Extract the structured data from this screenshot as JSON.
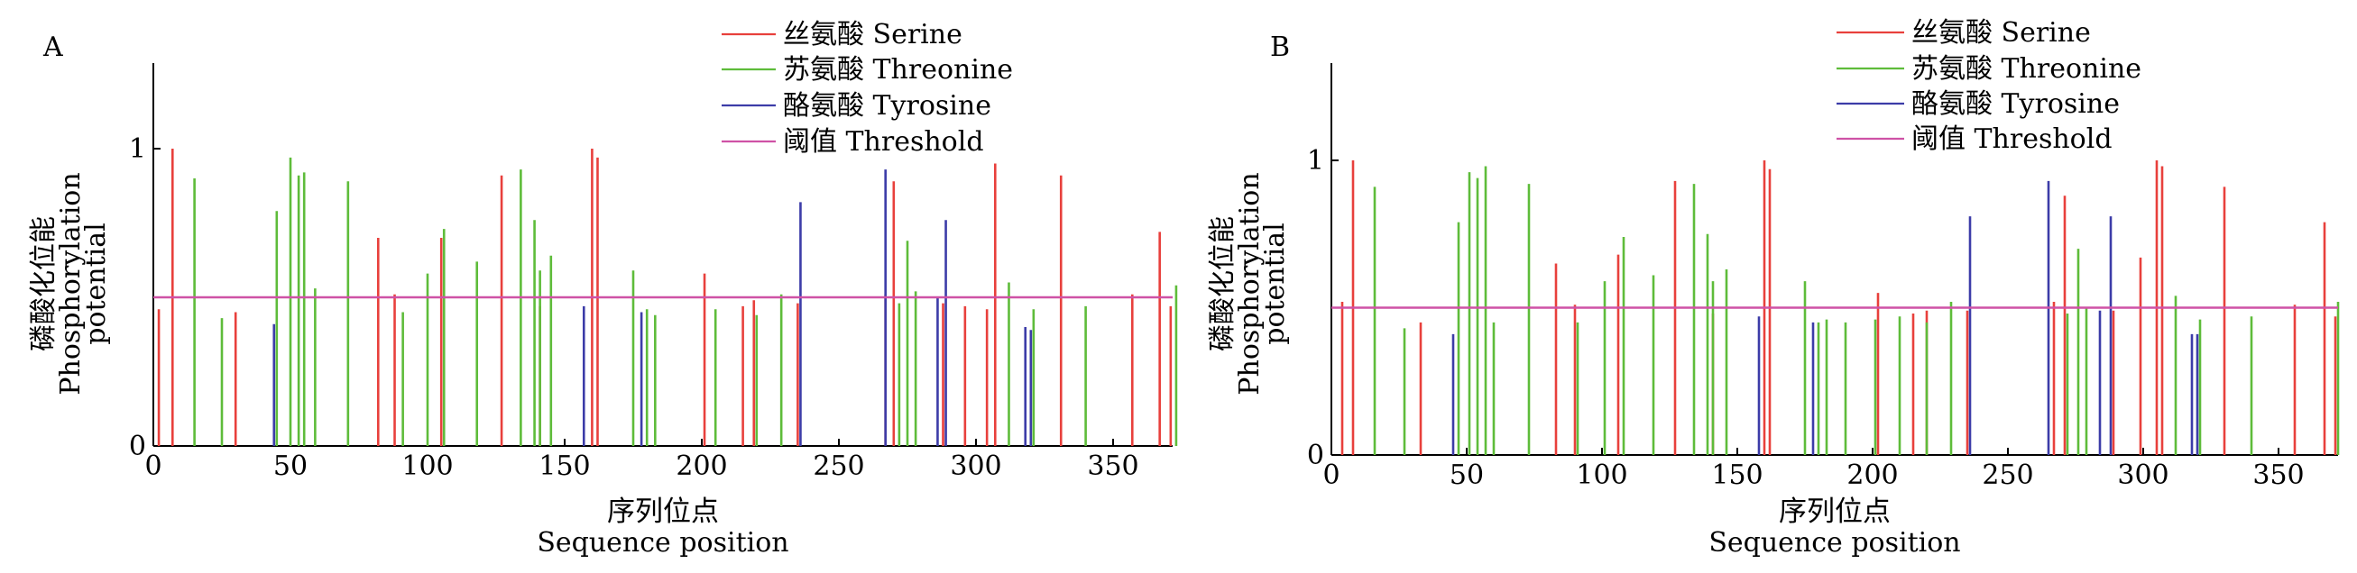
{
  "chart_data": [
    {
      "panel_label": "A",
      "type": "bar",
      "xlabel_cn": "序列位点",
      "xlabel_en": "Sequence position",
      "ylabel_cn": "磷酸化位能",
      "ylabel_en": "Phosphorylation",
      "ylabel_en2": "potential",
      "xlim": [
        0,
        372
      ],
      "ylim": [
        0,
        1.3
      ],
      "xticks": [
        0,
        50,
        100,
        150,
        200,
        250,
        300,
        350
      ],
      "ytick_labels": [
        {
          "value": 0,
          "label": "0"
        },
        {
          "value": 1,
          "label": "1"
        }
      ],
      "threshold": 0.5,
      "legend": [
        {
          "key": "serine",
          "label": "丝氨酸 Serine",
          "color": "#e8403c"
        },
        {
          "key": "threonine",
          "label": "苏氨酸 Threonine",
          "color": "#5ebc3a"
        },
        {
          "key": "tyrosine",
          "label": "酪氨酸 Tyrosine",
          "color": "#3c3ca8"
        },
        {
          "key": "threshold",
          "label": "阈值 Threshold",
          "color": "#cf52a6"
        }
      ],
      "series": [
        {
          "key": "serine",
          "name": "丝氨酸 Serine",
          "color": "#e8403c",
          "x": [
            2,
            7,
            30,
            82,
            88,
            105,
            127,
            141,
            160,
            162,
            201,
            215,
            219,
            235,
            267,
            270,
            288,
            296,
            304,
            307,
            331,
            357,
            367,
            371
          ],
          "y": [
            0.46,
            1.0,
            0.45,
            0.7,
            0.51,
            0.7,
            0.91,
            0.47,
            1.0,
            0.97,
            0.58,
            0.47,
            0.49,
            0.48,
            0.51,
            0.89,
            0.48,
            0.47,
            0.46,
            0.95,
            0.91,
            0.51,
            0.72,
            0.47
          ]
        },
        {
          "key": "threonine",
          "name": "苏氨酸 Threonine",
          "color": "#5ebc3a",
          "x": [
            15,
            25,
            45,
            50,
            53,
            55,
            59,
            71,
            91,
            100,
            106,
            118,
            134,
            139,
            141,
            145,
            175,
            180,
            183,
            205,
            220,
            229,
            272,
            275,
            278,
            312,
            321,
            340,
            373
          ],
          "y": [
            0.9,
            0.43,
            0.79,
            0.97,
            0.91,
            0.92,
            0.53,
            0.89,
            0.45,
            0.58,
            0.73,
            0.62,
            0.93,
            0.76,
            0.59,
            0.64,
            0.59,
            0.46,
            0.44,
            0.46,
            0.44,
            0.51,
            0.48,
            0.69,
            0.52,
            0.55,
            0.46,
            0.47,
            0.54
          ]
        },
        {
          "key": "tyrosine",
          "name": "酪氨酸 Tyrosine",
          "color": "#3c3ca8",
          "x": [
            44,
            157,
            178,
            236,
            267,
            286,
            289,
            318,
            320
          ],
          "y": [
            0.41,
            0.47,
            0.45,
            0.82,
            0.93,
            0.5,
            0.76,
            0.4,
            0.39
          ]
        }
      ]
    },
    {
      "panel_label": "B",
      "type": "bar",
      "xlabel_cn": "序列位点",
      "xlabel_en": "Sequence position",
      "ylabel_cn": "磷酸化位能",
      "ylabel_en": "Phosphorylation",
      "ylabel_en2": "potential",
      "xlim": [
        0,
        372
      ],
      "ylim": [
        0,
        1.3
      ],
      "xticks": [
        0,
        50,
        100,
        150,
        200,
        250,
        300,
        350
      ],
      "ytick_labels": [
        {
          "value": 0,
          "label": "0"
        },
        {
          "value": 1,
          "label": "1"
        }
      ],
      "threshold": 0.5,
      "legend": [
        {
          "key": "serine",
          "label": "丝氨酸 Serine",
          "color": "#e8403c"
        },
        {
          "key": "threonine",
          "label": "苏氨酸 Threonine",
          "color": "#5ebc3a"
        },
        {
          "key": "tyrosine",
          "label": "酪氨酸 Tyrosine",
          "color": "#3c3ca8"
        },
        {
          "key": "threshold",
          "label": "阈值 Threshold",
          "color": "#cf52a6"
        }
      ],
      "series": [
        {
          "key": "serine",
          "name": "丝氨酸 Serine",
          "color": "#e8403c",
          "x": [
            4,
            8,
            33,
            83,
            90,
            106,
            127,
            141,
            160,
            162,
            202,
            215,
            220,
            235,
            267,
            271,
            289,
            299,
            305,
            307,
            330,
            356,
            367,
            371
          ],
          "y": [
            0.52,
            1.0,
            0.45,
            0.65,
            0.51,
            0.68,
            0.93,
            0.48,
            1.0,
            0.97,
            0.55,
            0.48,
            0.49,
            0.49,
            0.52,
            0.88,
            0.49,
            0.67,
            1.0,
            0.98,
            0.91,
            0.51,
            0.79,
            0.47
          ]
        },
        {
          "key": "threonine",
          "name": "苏氨酸 Threonine",
          "color": "#5ebc3a",
          "x": [
            16,
            27,
            47,
            51,
            54,
            57,
            60,
            73,
            91,
            101,
            108,
            119,
            134,
            139,
            141,
            146,
            175,
            180,
            183,
            190,
            201,
            210,
            220,
            229,
            272,
            276,
            279,
            312,
            321,
            340,
            372
          ],
          "y": [
            0.91,
            0.43,
            0.79,
            0.96,
            0.94,
            0.98,
            0.45,
            0.92,
            0.45,
            0.59,
            0.74,
            0.61,
            0.92,
            0.75,
            0.59,
            0.63,
            0.59,
            0.45,
            0.46,
            0.45,
            0.46,
            0.47,
            0.45,
            0.52,
            0.48,
            0.7,
            0.5,
            0.54,
            0.46,
            0.47,
            0.52
          ]
        },
        {
          "key": "tyrosine",
          "name": "酪氨酸 Tyrosine",
          "color": "#3c3ca8",
          "x": [
            45,
            158,
            178,
            236,
            265,
            284,
            288,
            318,
            320
          ],
          "y": [
            0.41,
            0.47,
            0.45,
            0.81,
            0.93,
            0.49,
            0.81,
            0.41,
            0.41
          ]
        }
      ]
    }
  ]
}
